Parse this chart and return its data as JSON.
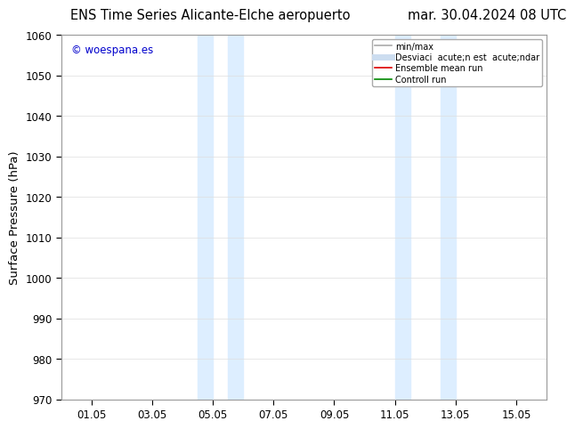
{
  "title_left": "ENS Time Series Alicante-Elche aeropuerto",
  "title_right": "mar. 30.04.2024 08 UTC",
  "ylabel": "Surface Pressure (hPa)",
  "ylim": [
    970,
    1060
  ],
  "yticks": [
    970,
    980,
    990,
    1000,
    1010,
    1020,
    1030,
    1040,
    1050,
    1060
  ],
  "xtick_labels": [
    "01.05",
    "03.05",
    "05.05",
    "07.05",
    "09.05",
    "11.05",
    "13.05",
    "15.05"
  ],
  "xtick_positions": [
    1,
    3,
    5,
    7,
    9,
    11,
    13,
    15
  ],
  "xlim": [
    0,
    16
  ],
  "shade_bands": [
    {
      "x_start": 4.5,
      "x_end": 5.0,
      "color": "#ddeeff"
    },
    {
      "x_start": 5.5,
      "x_end": 6.0,
      "color": "#ddeeff"
    },
    {
      "x_start": 11.0,
      "x_end": 11.5,
      "color": "#ddeeff"
    },
    {
      "x_start": 12.5,
      "x_end": 13.0,
      "color": "#ddeeff"
    }
  ],
  "watermark_text": "© woespana.es",
  "watermark_color": "#0000cc",
  "legend_entries": [
    {
      "label": "min/max",
      "color": "#aaaaaa",
      "lw": 1.2,
      "style": "-"
    },
    {
      "label": "Desviaci  acute;n est  acute;ndar",
      "color": "#ccddf0",
      "lw": 5,
      "style": "-"
    },
    {
      "label": "Ensemble mean run",
      "color": "#dd0000",
      "lw": 1.2,
      "style": "-"
    },
    {
      "label": "Controll run",
      "color": "#008800",
      "lw": 1.2,
      "style": "-"
    }
  ],
  "bg_color": "#ffffff",
  "grid_color": "#dddddd",
  "title_fontsize": 10.5,
  "tick_fontsize": 8.5,
  "ylabel_fontsize": 9.5
}
